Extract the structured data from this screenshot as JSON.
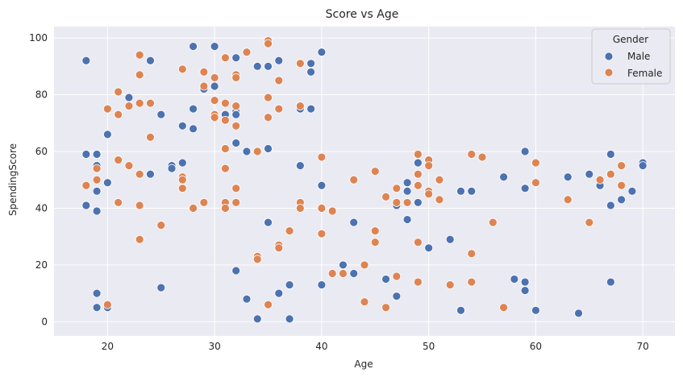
{
  "chart_data": {
    "type": "scatter",
    "title": "Score vs Age",
    "xlabel": "Age",
    "ylabel": "SpendingScore",
    "xlim": [
      15,
      73
    ],
    "ylim": [
      -5,
      104
    ],
    "xticks": [
      20,
      30,
      40,
      50,
      60,
      70
    ],
    "yticks": [
      0,
      20,
      40,
      60,
      80,
      100
    ],
    "grid": true,
    "legend": {
      "title": "Gender",
      "position": "top-right"
    },
    "series": [
      {
        "name": "Male",
        "color": "#4c72b0",
        "points": [
          [
            18,
            92
          ],
          [
            18,
            59
          ],
          [
            18,
            41
          ],
          [
            19,
            59
          ],
          [
            19,
            55
          ],
          [
            19,
            46
          ],
          [
            19,
            39
          ],
          [
            19,
            10
          ],
          [
            19,
            5
          ],
          [
            20,
            66
          ],
          [
            20,
            49
          ],
          [
            20,
            5
          ],
          [
            22,
            79
          ],
          [
            24,
            92
          ],
          [
            24,
            52
          ],
          [
            25,
            73
          ],
          [
            25,
            12
          ],
          [
            26,
            55
          ],
          [
            26,
            54
          ],
          [
            27,
            69
          ],
          [
            27,
            56
          ],
          [
            28,
            97
          ],
          [
            28,
            75
          ],
          [
            28,
            68
          ],
          [
            29,
            83
          ],
          [
            29,
            82
          ],
          [
            30,
            97
          ],
          [
            30,
            83
          ],
          [
            31,
            73
          ],
          [
            32,
            93
          ],
          [
            32,
            74
          ],
          [
            32,
            73
          ],
          [
            32,
            63
          ],
          [
            32,
            18
          ],
          [
            33,
            60
          ],
          [
            33,
            8
          ],
          [
            34,
            90
          ],
          [
            34,
            1
          ],
          [
            35,
            90
          ],
          [
            35,
            61
          ],
          [
            35,
            35
          ],
          [
            36,
            92
          ],
          [
            36,
            10
          ],
          [
            37,
            13
          ],
          [
            37,
            1
          ],
          [
            38,
            75
          ],
          [
            38,
            55
          ],
          [
            39,
            91
          ],
          [
            39,
            88
          ],
          [
            39,
            75
          ],
          [
            40,
            95
          ],
          [
            40,
            48
          ],
          [
            40,
            13
          ],
          [
            42,
            20
          ],
          [
            43,
            35
          ],
          [
            43,
            17
          ],
          [
            46,
            15
          ],
          [
            47,
            41
          ],
          [
            47,
            9
          ],
          [
            48,
            49
          ],
          [
            48,
            46
          ],
          [
            48,
            36
          ],
          [
            49,
            56
          ],
          [
            49,
            42
          ],
          [
            50,
            26
          ],
          [
            52,
            29
          ],
          [
            53,
            46
          ],
          [
            53,
            4
          ],
          [
            54,
            46
          ],
          [
            57,
            51
          ],
          [
            58,
            15
          ],
          [
            59,
            60
          ],
          [
            59,
            47
          ],
          [
            59,
            14
          ],
          [
            59,
            11
          ],
          [
            60,
            4
          ],
          [
            63,
            51
          ],
          [
            64,
            3
          ],
          [
            65,
            52
          ],
          [
            66,
            48
          ],
          [
            67,
            59
          ],
          [
            67,
            41
          ],
          [
            67,
            14
          ],
          [
            68,
            43
          ],
          [
            69,
            46
          ],
          [
            70,
            56
          ],
          [
            70,
            55
          ]
        ]
      },
      {
        "name": "Female",
        "color": "#dd8452",
        "points": [
          [
            18,
            48
          ],
          [
            19,
            54
          ],
          [
            19,
            50
          ],
          [
            20,
            75
          ],
          [
            20,
            6
          ],
          [
            21,
            81
          ],
          [
            21,
            73
          ],
          [
            21,
            57
          ],
          [
            21,
            42
          ],
          [
            22,
            76
          ],
          [
            22,
            55
          ],
          [
            23,
            94
          ],
          [
            23,
            87
          ],
          [
            23,
            77
          ],
          [
            23,
            52
          ],
          [
            23,
            41
          ],
          [
            23,
            29
          ],
          [
            24,
            77
          ],
          [
            24,
            65
          ],
          [
            25,
            34
          ],
          [
            27,
            89
          ],
          [
            27,
            51
          ],
          [
            27,
            50
          ],
          [
            27,
            47
          ],
          [
            28,
            40
          ],
          [
            29,
            88
          ],
          [
            29,
            83
          ],
          [
            29,
            42
          ],
          [
            30,
            86
          ],
          [
            30,
            78
          ],
          [
            30,
            73
          ],
          [
            30,
            72
          ],
          [
            31,
            93
          ],
          [
            31,
            77
          ],
          [
            31,
            71
          ],
          [
            31,
            61
          ],
          [
            31,
            54
          ],
          [
            31,
            42
          ],
          [
            31,
            40
          ],
          [
            32,
            87
          ],
          [
            32,
            86
          ],
          [
            32,
            76
          ],
          [
            32,
            69
          ],
          [
            32,
            47
          ],
          [
            32,
            42
          ],
          [
            33,
            95
          ],
          [
            34,
            60
          ],
          [
            34,
            23
          ],
          [
            34,
            22
          ],
          [
            35,
            99
          ],
          [
            35,
            98
          ],
          [
            35,
            79
          ],
          [
            35,
            72
          ],
          [
            35,
            6
          ],
          [
            36,
            85
          ],
          [
            36,
            75
          ],
          [
            36,
            27
          ],
          [
            36,
            26
          ],
          [
            37,
            32
          ],
          [
            38,
            91
          ],
          [
            38,
            76
          ],
          [
            38,
            42
          ],
          [
            38,
            40
          ],
          [
            40,
            58
          ],
          [
            40,
            40
          ],
          [
            40,
            31
          ],
          [
            41,
            39
          ],
          [
            41,
            17
          ],
          [
            42,
            17
          ],
          [
            43,
            50
          ],
          [
            44,
            20
          ],
          [
            44,
            7
          ],
          [
            45,
            53
          ],
          [
            45,
            32
          ],
          [
            45,
            28
          ],
          [
            46,
            44
          ],
          [
            46,
            5
          ],
          [
            47,
            47
          ],
          [
            47,
            42
          ],
          [
            47,
            16
          ],
          [
            48,
            42
          ],
          [
            49,
            59
          ],
          [
            49,
            52
          ],
          [
            49,
            48
          ],
          [
            49,
            28
          ],
          [
            49,
            14
          ],
          [
            50,
            57
          ],
          [
            50,
            55
          ],
          [
            50,
            46
          ],
          [
            50,
            45
          ],
          [
            51,
            50
          ],
          [
            51,
            43
          ],
          [
            52,
            13
          ],
          [
            54,
            59
          ],
          [
            54,
            24
          ],
          [
            54,
            14
          ],
          [
            55,
            58
          ],
          [
            56,
            35
          ],
          [
            57,
            5
          ],
          [
            60,
            56
          ],
          [
            60,
            49
          ],
          [
            63,
            43
          ],
          [
            65,
            35
          ],
          [
            66,
            50
          ],
          [
            67,
            52
          ],
          [
            68,
            55
          ],
          [
            68,
            48
          ]
        ]
      }
    ]
  }
}
